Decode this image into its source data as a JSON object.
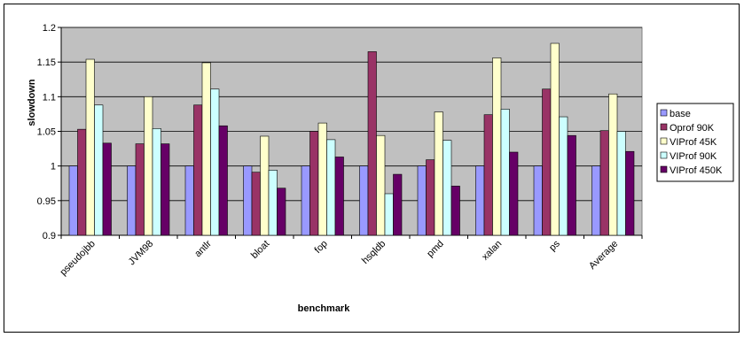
{
  "chart_data": {
    "type": "bar",
    "title": "",
    "xlabel": "benchmark",
    "ylabel": "slowdown",
    "ylim": [
      0.9,
      1.2
    ],
    "yticks": [
      0.9,
      0.95,
      1,
      1.05,
      1.1,
      1.15,
      1.2
    ],
    "ytick_labels": [
      "0.9",
      "0.95",
      "1",
      "1.05",
      "1.1",
      "1.15",
      "1.2"
    ],
    "grid": true,
    "legend_position": "right",
    "plot_background": "#c0c0c0",
    "categories": [
      "pseudojbb",
      "JVM98",
      "antlr",
      "bloat",
      "fop",
      "hsqldb",
      "pmd",
      "xalan",
      "ps",
      "Average"
    ],
    "series": [
      {
        "name": "base",
        "color": "#9999ff",
        "values": [
          1,
          1,
          1,
          1,
          1,
          1,
          1,
          1,
          1,
          1
        ]
      },
      {
        "name": "Oprof 90K",
        "color": "#993366",
        "values": [
          1.053,
          1.032,
          1.088,
          0.991,
          1.05,
          1.165,
          1.009,
          1.074,
          1.111,
          1.051
        ]
      },
      {
        "name": "VIProf 45K",
        "color": "#ffffcc",
        "values": [
          1.154,
          1.1,
          1.149,
          1.043,
          1.062,
          1.044,
          1.078,
          1.156,
          1.177,
          1.104
        ]
      },
      {
        "name": "VIProf 90K",
        "color": "#ccffff",
        "values": [
          1.088,
          1.054,
          1.111,
          0.994,
          1.038,
          0.96,
          1.037,
          1.082,
          1.071,
          1.05
        ]
      },
      {
        "name": "VIProf 450K",
        "color": "#660066",
        "values": [
          1.033,
          1.032,
          1.058,
          0.968,
          1.013,
          0.988,
          0.971,
          1.02,
          1.044,
          1.021
        ]
      }
    ]
  }
}
